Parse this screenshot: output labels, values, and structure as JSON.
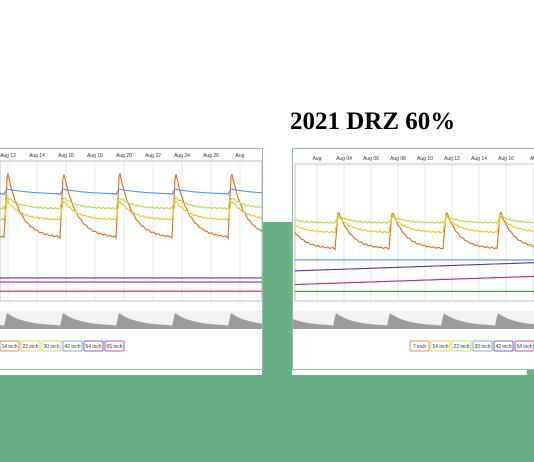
{
  "page": {
    "title": "2021 DRZ 60%"
  },
  "colors": {
    "accent_green": "#6baf85",
    "series": [
      "#e06a1c",
      "#f0c419",
      "#b7d93a",
      "#5b8fd6",
      "#5a2fc0",
      "#b5218f",
      "#d81b3c",
      "#2ca02c"
    ]
  },
  "chart_data": [
    {
      "type": "line",
      "title": "",
      "xlabel": "",
      "ylabel": "",
      "x_tick_labels": [
        "Aug 12",
        "Aug 14",
        "Aug 16",
        "Aug 18",
        "Aug 20",
        "Aug 22",
        "Aug 24",
        "Aug 26",
        "Aug"
      ],
      "legend": [
        "14 inch",
        "22 inch",
        "30 inch",
        "42 inch",
        "54 inch",
        "65 inch"
      ],
      "grid": true,
      "legend_position": "bottom",
      "series": [
        {
          "color": "#e06a1c",
          "base": 0.45,
          "peak": 0.93,
          "kind": "spike"
        },
        {
          "color": "#f0c419",
          "base": 0.58,
          "peak": 0.72,
          "kind": "spike"
        },
        {
          "color": "#b7d93a",
          "base": 0.66,
          "peak": 0.74,
          "kind": "spike"
        },
        {
          "color": "#5b8fd6",
          "base": 0.76,
          "peak": 0.8,
          "kind": "step"
        },
        {
          "color": "#5a2fc0",
          "base": 0.835,
          "peak": 0.835,
          "kind": "flat"
        },
        {
          "color": "#b5218f",
          "base": 0.865,
          "peak": 0.865,
          "kind": "flat"
        },
        {
          "color": "#d81b3c",
          "base": 0.93,
          "peak": 0.93,
          "kind": "flat"
        }
      ]
    },
    {
      "type": "line",
      "title": "2021 DRZ 60%",
      "xlabel": "",
      "ylabel": "",
      "x_tick_labels": [
        "Aug",
        "Aug 04",
        "Aug 06",
        "Aug 08",
        "Aug 10",
        "Aug 12",
        "Aug 14",
        "Aug 16",
        "Au"
      ],
      "legend": [
        "7 inch",
        "14 inch",
        "22 inch",
        "30 inch",
        "42 inch",
        "54 inch"
      ],
      "grid": true,
      "legend_position": "bottom",
      "series": [
        {
          "color": "#e06a1c",
          "base": 0.38,
          "peak": 0.66,
          "kind": "spike"
        },
        {
          "color": "#f0c419",
          "base": 0.5,
          "peak": 0.62,
          "kind": "spike"
        },
        {
          "color": "#b7d93a",
          "base": 0.57,
          "peak": 0.62,
          "kind": "spike"
        },
        {
          "color": "#5b8fd6",
          "base": 0.7,
          "peak": 0.74,
          "kind": "flat"
        },
        {
          "color": "#5a2fc0",
          "base": 0.78,
          "peak": 0.72,
          "kind": "rise"
        },
        {
          "color": "#b5218f",
          "base": 0.88,
          "peak": 0.82,
          "kind": "rise"
        },
        {
          "color": "#2ca02c",
          "base": 0.93,
          "peak": 0.93,
          "kind": "flat"
        }
      ]
    }
  ]
}
